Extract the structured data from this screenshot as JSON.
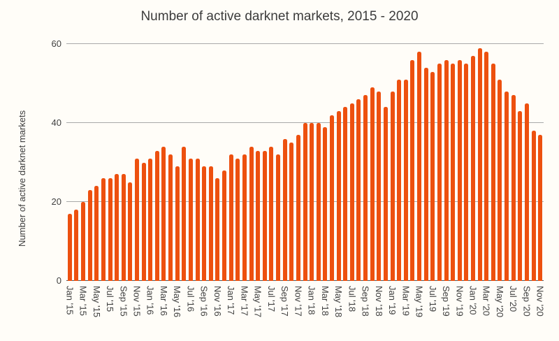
{
  "chart_data": {
    "type": "bar",
    "title": "Number of active darknet markets, 2015 - 2020",
    "xlabel": "",
    "ylabel": "Number of active darknet markets",
    "ylim": [
      0,
      60
    ],
    "yticks": [
      0,
      20,
      40,
      60
    ],
    "grid": "horizontal",
    "legend": "none",
    "bar_color": "#ed500f",
    "gridline_color": "#a9a9a9",
    "baseline_color": "#545454",
    "text_color": "#3c3c3c",
    "x_tick_every": 2,
    "categories": [
      "Jan '15",
      "Feb '15",
      "Mar '15",
      "Apr '15",
      "May '15",
      "Jun '15",
      "Jul '15",
      "Aug '15",
      "Sep '15",
      "Oct '15",
      "Nov '15",
      "Dec '15",
      "Jan '16",
      "Feb '16",
      "Mar '16",
      "Apr '16",
      "May '16",
      "Jun '16",
      "Jul '16",
      "Aug '16",
      "Sep '16",
      "Oct '16",
      "Nov '16",
      "Dec '16",
      "Jan '17",
      "Feb '17",
      "Mar '17",
      "Apr '17",
      "May '17",
      "Jun '17",
      "Jul '17",
      "Aug '17",
      "Sep '17",
      "Oct '17",
      "Nov '17",
      "Dec '17",
      "Jan '18",
      "Feb '18",
      "Mar '18",
      "Apr '18",
      "May '18",
      "Jun '18",
      "Jul '18",
      "Aug '18",
      "Sep '18",
      "Oct '18",
      "Nov '18",
      "Dec '18",
      "Jan '19",
      "Feb '19",
      "Mar '19",
      "Apr '19",
      "May '19",
      "Jun '19",
      "Jul '19",
      "Aug '19",
      "Sep '19",
      "Oct '19",
      "Nov '19",
      "Dec '19",
      "Jan '20",
      "Feb '20",
      "Mar '20",
      "Apr '20",
      "May '20",
      "Jun '20",
      "Jul '20",
      "Aug '20",
      "Sep '20",
      "Oct '20",
      "Nov '20"
    ],
    "values": [
      17,
      18,
      20,
      23,
      24,
      26,
      26,
      27,
      27,
      25,
      31,
      30,
      31,
      33,
      34,
      32,
      29,
      34,
      31,
      31,
      29,
      29,
      26,
      28,
      32,
      31,
      32,
      34,
      33,
      33,
      34,
      32,
      36,
      35,
      37,
      40,
      40,
      40,
      39,
      42,
      43,
      44,
      45,
      46,
      47,
      49,
      48,
      44,
      48,
      51,
      51,
      56,
      58,
      54,
      53,
      55,
      56,
      55,
      56,
      55,
      57,
      59,
      58,
      55,
      51,
      48,
      47,
      43,
      45,
      38,
      37
    ]
  }
}
